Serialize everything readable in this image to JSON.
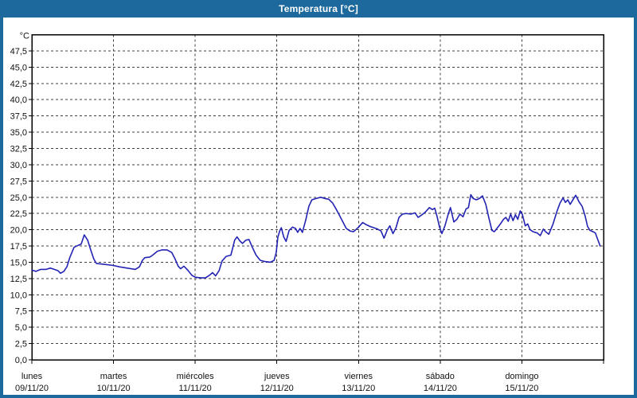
{
  "window": {
    "title": "Temperatura [°C]"
  },
  "chart_data": {
    "type": "line",
    "title": "Temperatura [°C]",
    "ylabel": "°C",
    "ylim": [
      0,
      50
    ],
    "y_tick_step": 2.5,
    "grid": true,
    "legend": "none",
    "x_span_hours": 168,
    "x_categories": [
      {
        "day": "lunes",
        "date": "09/11/20"
      },
      {
        "day": "martes",
        "date": "10/11/20"
      },
      {
        "day": "miércoles",
        "date": "11/11/20"
      },
      {
        "day": "jueves",
        "date": "12/11/20"
      },
      {
        "day": "viernes",
        "date": "13/11/20"
      },
      {
        "day": "sábado",
        "date": "14/11/20"
      },
      {
        "day": "domingo",
        "date": "15/11/20"
      }
    ],
    "y_ticks": [
      {
        "label": "47,5",
        "value": 47.5
      },
      {
        "label": "45,0",
        "value": 45.0
      },
      {
        "label": "42,5",
        "value": 42.5
      },
      {
        "label": "40,0",
        "value": 40.0
      },
      {
        "label": "37,5",
        "value": 37.5
      },
      {
        "label": "35,0",
        "value": 35.0
      },
      {
        "label": "32,5",
        "value": 32.5
      },
      {
        "label": "30,0",
        "value": 30.0
      },
      {
        "label": "27,5",
        "value": 27.5
      },
      {
        "label": "25,0",
        "value": 25.0
      },
      {
        "label": "22,5",
        "value": 22.5
      },
      {
        "label": "20,0",
        "value": 20.0
      },
      {
        "label": "17,5",
        "value": 17.5
      },
      {
        "label": "15,0",
        "value": 15.0
      },
      {
        "label": "12,5",
        "value": 12.5
      },
      {
        "label": "10,0",
        "value": 10.0
      },
      {
        "label": "7,5",
        "value": 7.5
      },
      {
        "label": "5,0",
        "value": 5.0
      },
      {
        "label": "2,5",
        "value": 2.5
      },
      {
        "label": "0,0",
        "value": 0.0
      }
    ],
    "colors": {
      "titlebar": "#1d699d",
      "line": "#2424b4",
      "frame": "#000000",
      "grid": "#404040",
      "label": "#111111",
      "background": "#ffffff"
    },
    "series": [
      {
        "name": "Temperatura",
        "color": "#2424b4",
        "points": [
          [
            0,
            13.8
          ],
          [
            1.2,
            13.6
          ],
          [
            2.6,
            13.9
          ],
          [
            4.2,
            13.9
          ],
          [
            5.4,
            14.1
          ],
          [
            6.6,
            13.9
          ],
          [
            7.7,
            13.7
          ],
          [
            8.4,
            13.3
          ],
          [
            9.4,
            13.6
          ],
          [
            10.3,
            14.3
          ],
          [
            11.2,
            15.8
          ],
          [
            12.4,
            17.3
          ],
          [
            13.6,
            17.6
          ],
          [
            14.5,
            17.8
          ],
          [
            15.4,
            19.2
          ],
          [
            16.4,
            18.4
          ],
          [
            17.3,
            16.9
          ],
          [
            18.2,
            15.5
          ],
          [
            19,
            14.8
          ],
          [
            21,
            14.7
          ],
          [
            24,
            14.5
          ],
          [
            25.7,
            14.3
          ],
          [
            28,
            14.1
          ],
          [
            30.4,
            13.9
          ],
          [
            31.6,
            14.3
          ],
          [
            32.5,
            15.3
          ],
          [
            33.2,
            15.7
          ],
          [
            34.7,
            15.8
          ],
          [
            35.5,
            16.1
          ],
          [
            36.9,
            16.7
          ],
          [
            38.3,
            16.9
          ],
          [
            39.7,
            16.9
          ],
          [
            41.1,
            16.5
          ],
          [
            42.1,
            15.5
          ],
          [
            43,
            14.4
          ],
          [
            43.7,
            14.0
          ],
          [
            44.7,
            14.4
          ],
          [
            45.8,
            13.8
          ],
          [
            47,
            13.0
          ],
          [
            48,
            12.7
          ],
          [
            49.6,
            12.6
          ],
          [
            51,
            12.6
          ],
          [
            52.2,
            13.0
          ],
          [
            53.1,
            13.4
          ],
          [
            54,
            12.9
          ],
          [
            55,
            13.7
          ],
          [
            55.9,
            15.2
          ],
          [
            57.1,
            15.9
          ],
          [
            58.5,
            16.1
          ],
          [
            59.6,
            18.4
          ],
          [
            60.3,
            18.9
          ],
          [
            61.1,
            18.3
          ],
          [
            61.9,
            17.9
          ],
          [
            62.9,
            18.4
          ],
          [
            63.8,
            18.5
          ],
          [
            64.8,
            17.3
          ],
          [
            65.9,
            16.1
          ],
          [
            67.1,
            15.3
          ],
          [
            68.5,
            15.1
          ],
          [
            70.1,
            15.0
          ],
          [
            71.2,
            15.3
          ],
          [
            71.8,
            16.5
          ],
          [
            72.3,
            18.9
          ],
          [
            72.9,
            19.9
          ],
          [
            73.3,
            20.3
          ],
          [
            74,
            18.9
          ],
          [
            74.7,
            18.2
          ],
          [
            75.6,
            19.9
          ],
          [
            76.6,
            20.4
          ],
          [
            77.5,
            20.2
          ],
          [
            78.1,
            19.6
          ],
          [
            78.8,
            20.2
          ],
          [
            79.5,
            19.6
          ],
          [
            80.5,
            21.5
          ],
          [
            81.4,
            23.6
          ],
          [
            82.3,
            24.6
          ],
          [
            83.5,
            24.8
          ],
          [
            84.9,
            25.0
          ],
          [
            86.1,
            24.8
          ],
          [
            87.2,
            24.7
          ],
          [
            88.4,
            24.1
          ],
          [
            89.8,
            22.8
          ],
          [
            91.1,
            21.5
          ],
          [
            92.4,
            20.2
          ],
          [
            93.5,
            19.8
          ],
          [
            94.5,
            19.7
          ],
          [
            95.4,
            20.1
          ],
          [
            96,
            20.4
          ],
          [
            97.2,
            21.1
          ],
          [
            98.2,
            20.8
          ],
          [
            99.4,
            20.5
          ],
          [
            100.5,
            20.3
          ],
          [
            101.6,
            20.1
          ],
          [
            102.6,
            19.8
          ],
          [
            103.5,
            18.7
          ],
          [
            104.4,
            19.9
          ],
          [
            105.2,
            20.6
          ],
          [
            106.1,
            19.4
          ],
          [
            107,
            20.3
          ],
          [
            107.9,
            21.9
          ],
          [
            108.9,
            22.4
          ],
          [
            110,
            22.5
          ],
          [
            111.4,
            22.4
          ],
          [
            112.6,
            22.6
          ],
          [
            113.5,
            21.9
          ],
          [
            114.4,
            22.2
          ],
          [
            115.6,
            22.7
          ],
          [
            116.8,
            23.4
          ],
          [
            117.7,
            23.1
          ],
          [
            118.4,
            23.3
          ],
          [
            119.1,
            22.0
          ],
          [
            119.8,
            20.4
          ],
          [
            120.5,
            19.4
          ],
          [
            121.4,
            20.6
          ],
          [
            122.3,
            22.3
          ],
          [
            123,
            23.4
          ],
          [
            124,
            21.2
          ],
          [
            124.9,
            21.6
          ],
          [
            125.8,
            22.4
          ],
          [
            126.7,
            22.0
          ],
          [
            127.6,
            23.2
          ],
          [
            128.3,
            23.4
          ],
          [
            129,
            25.4
          ],
          [
            129.7,
            24.8
          ],
          [
            130.6,
            24.6
          ],
          [
            131.5,
            24.8
          ],
          [
            132.4,
            25.2
          ],
          [
            133.4,
            23.9
          ],
          [
            134.3,
            21.8
          ],
          [
            135.2,
            19.9
          ],
          [
            135.9,
            19.7
          ],
          [
            136.8,
            20.3
          ],
          [
            137.7,
            20.9
          ],
          [
            138.6,
            21.6
          ],
          [
            139.3,
            21.9
          ],
          [
            140,
            21.3
          ],
          [
            140.7,
            22.4
          ],
          [
            141.4,
            21.4
          ],
          [
            142.1,
            22.3
          ],
          [
            142.8,
            21.6
          ],
          [
            143.5,
            22.9
          ],
          [
            144.1,
            22.4
          ],
          [
            145,
            20.6
          ],
          [
            145.7,
            20.9
          ],
          [
            146.4,
            20.0
          ],
          [
            147.3,
            19.7
          ],
          [
            148.5,
            19.5
          ],
          [
            149.4,
            19.1
          ],
          [
            150.3,
            20.1
          ],
          [
            151,
            19.7
          ],
          [
            151.9,
            19.3
          ],
          [
            153.1,
            20.8
          ],
          [
            154.3,
            22.8
          ],
          [
            155.2,
            24.1
          ],
          [
            156.1,
            24.9
          ],
          [
            156.8,
            24.2
          ],
          [
            157.5,
            24.6
          ],
          [
            158.2,
            23.9
          ],
          [
            159.1,
            24.7
          ],
          [
            159.8,
            25.3
          ],
          [
            160.8,
            24.3
          ],
          [
            161.7,
            23.6
          ],
          [
            162.6,
            22.1
          ],
          [
            163.3,
            20.5
          ],
          [
            164,
            19.9
          ],
          [
            164.9,
            19.7
          ],
          [
            165.6,
            19.5
          ],
          [
            166.3,
            18.5
          ],
          [
            167,
            17.5
          ]
        ]
      }
    ]
  }
}
